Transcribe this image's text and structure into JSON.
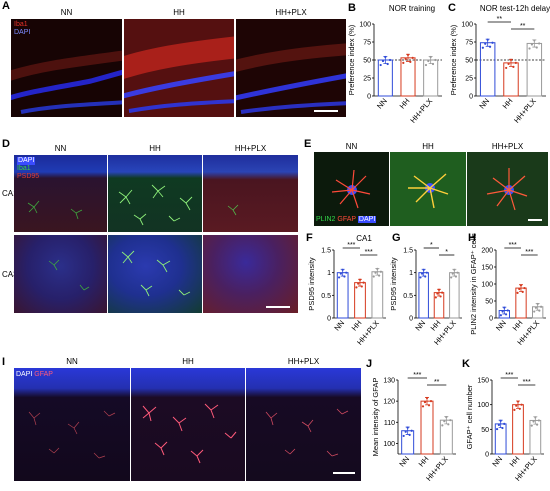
{
  "panels": {
    "A": {
      "letter": "A",
      "columns": [
        "NN",
        "HH",
        "HH+PLX"
      ],
      "legend": [
        "Iba1",
        "DAPI"
      ]
    },
    "D": {
      "letter": "D",
      "columns": [
        "NN",
        "HH",
        "HH+PLX"
      ],
      "rows": [
        "CA1",
        "CA3"
      ],
      "legend": [
        "DAPI",
        "Iba1",
        "PSD95"
      ]
    },
    "E": {
      "letter": "E",
      "columns": [
        "NN",
        "HH",
        "HH+PLX"
      ],
      "legend": [
        "PLIN2",
        "GFAP",
        "DAPI"
      ]
    },
    "I": {
      "letter": "I",
      "columns": [
        "NN",
        "HH",
        "HH+PLX"
      ],
      "legend": [
        "DAPI",
        "GFAP"
      ]
    }
  },
  "colors": {
    "iba1": "#e8332a",
    "dapi": "#3a4cff",
    "psd95": "#d03030",
    "plin2": "#27c44a",
    "gfap": "#ff5a4a",
    "nn": "#2f4bd8",
    "hh": "#d63a1f",
    "plx": "#9a9a9a"
  },
  "chart_data": [
    {
      "id": "B",
      "type": "bar",
      "letter": "B",
      "title": "NOR training",
      "ylabel": "Preference index (%)",
      "categories": [
        "NN",
        "HH",
        "HH+PLX"
      ],
      "values": [
        50,
        53,
        50
      ],
      "ylim": [
        0,
        100
      ],
      "yticks": [
        0,
        25,
        50,
        75,
        100
      ],
      "ref_line": 50,
      "significance": []
    },
    {
      "id": "C",
      "type": "bar",
      "letter": "C",
      "title": "NOR test-12h delay",
      "ylabel": "Preference index (%)",
      "categories": [
        "NN",
        "HH",
        "HH+PLX"
      ],
      "values": [
        74,
        46,
        73
      ],
      "ylim": [
        0,
        100
      ],
      "yticks": [
        0,
        25,
        50,
        75,
        100
      ],
      "ref_line": 50,
      "significance": [
        {
          "from": 0,
          "to": 1,
          "label": "**"
        },
        {
          "from": 1,
          "to": 2,
          "label": "**"
        }
      ]
    },
    {
      "id": "F",
      "type": "bar",
      "letter": "F",
      "title": "CA1",
      "ylabel": "PSD95 intensity",
      "categories": [
        "NN",
        "HH",
        "HH+PLX"
      ],
      "values": [
        1.0,
        0.78,
        1.02
      ],
      "ylim": [
        0,
        1.5
      ],
      "yticks": [
        0,
        0.5,
        1.0,
        1.5
      ],
      "significance": [
        {
          "from": 0,
          "to": 1,
          "label": "***"
        },
        {
          "from": 1,
          "to": 2,
          "label": "***"
        }
      ]
    },
    {
      "id": "G",
      "type": "bar",
      "letter": "G",
      "title": "",
      "ylabel": "PSD95 intensity",
      "categories": [
        "NN",
        "HH",
        "HH+PLX"
      ],
      "values": [
        1.0,
        0.56,
        1.0
      ],
      "ylim": [
        0,
        1.5
      ],
      "yticks": [
        0,
        0.5,
        1.0,
        1.5
      ],
      "significance": [
        {
          "from": 0,
          "to": 1,
          "label": "*"
        },
        {
          "from": 1,
          "to": 2,
          "label": "*"
        }
      ]
    },
    {
      "id": "H",
      "type": "bar",
      "letter": "H",
      "title": "",
      "ylabel": "PLIN2 intensity in GFAP⁺ cells",
      "categories": [
        "NN",
        "HH",
        "HH+PLX"
      ],
      "values": [
        22,
        88,
        33
      ],
      "ylim": [
        0,
        200
      ],
      "yticks": [
        0,
        50,
        100,
        150,
        200
      ],
      "significance": [
        {
          "from": 0,
          "to": 1,
          "label": "***"
        },
        {
          "from": 1,
          "to": 2,
          "label": "***"
        }
      ]
    },
    {
      "id": "J",
      "type": "bar",
      "letter": "J",
      "title": "",
      "ylabel": "Mean intensity of GFAP",
      "categories": [
        "NN",
        "HH",
        "HH+PLX"
      ],
      "values": [
        106,
        120,
        111
      ],
      "ylim": [
        95,
        130
      ],
      "yticks": [
        100,
        110,
        120,
        130
      ],
      "significance": [
        {
          "from": 0,
          "to": 1,
          "label": "***"
        },
        {
          "from": 1,
          "to": 2,
          "label": "**"
        }
      ]
    },
    {
      "id": "K",
      "type": "bar",
      "letter": "K",
      "title": "",
      "ylabel": "GFAP⁺ cell number",
      "categories": [
        "NN",
        "HH",
        "HH+PLX"
      ],
      "values": [
        61,
        100,
        68
      ],
      "ylim": [
        0,
        150
      ],
      "yticks": [
        0,
        50,
        100,
        150
      ],
      "significance": [
        {
          "from": 0,
          "to": 1,
          "label": "***"
        },
        {
          "from": 1,
          "to": 2,
          "label": "***"
        }
      ]
    }
  ]
}
